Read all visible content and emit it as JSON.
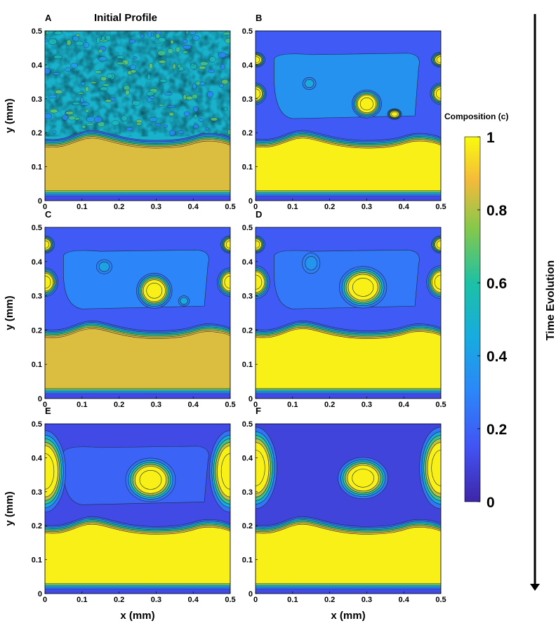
{
  "chart_data": {
    "type": "contour",
    "panel_title": "Initial Profile",
    "xlabel": "x (mm)",
    "ylabel": "y (mm)",
    "x_ticks": [
      "0",
      "0.1",
      "0.2",
      "0.3",
      "0.4",
      "0.5"
    ],
    "y_ticks": [
      "0",
      "0.1",
      "0.2",
      "0.3",
      "0.4",
      "0.5"
    ],
    "xlim": [
      0,
      0.5
    ],
    "ylim": [
      0,
      0.5
    ],
    "colorbar": {
      "label": "Composition (c)",
      "ticks": [
        "0",
        "0.2",
        "0.4",
        "0.6",
        "0.8",
        "1"
      ],
      "range": [
        0,
        1
      ],
      "colormap": "parula"
    },
    "time_arrow_label": "Time Evolution",
    "panels": [
      {
        "label": "A",
        "interface_y": 0.19,
        "matrix_c": 0.5,
        "noisy_top": true,
        "bottom_c": 0.85,
        "blobs": []
      },
      {
        "label": "B",
        "interface_y": 0.19,
        "matrix_c": 0.17,
        "inner_region": {
          "c": 0.35
        },
        "bottom_c": 0.98,
        "blobs": [
          {
            "x": 0.0,
            "y": 0.415,
            "rx": 0.016,
            "ry": 0.014
          },
          {
            "x": 0.0,
            "y": 0.315,
            "rx": 0.018,
            "ry": 0.02
          },
          {
            "x": 0.5,
            "y": 0.415,
            "rx": 0.016,
            "ry": 0.014
          },
          {
            "x": 0.5,
            "y": 0.315,
            "rx": 0.018,
            "ry": 0.02
          },
          {
            "x": 0.3,
            "y": 0.285,
            "rx": 0.025,
            "ry": 0.026
          },
          {
            "x": 0.375,
            "y": 0.255,
            "rx": 0.012,
            "ry": 0.01
          },
          {
            "x": 0.145,
            "y": 0.345,
            "rx": 0.012,
            "ry": 0.012,
            "c": 0.45
          }
        ]
      },
      {
        "label": "C",
        "interface_y": 0.21,
        "matrix_c": 0.17,
        "inner_region": {
          "c": 0.3
        },
        "bottom_c": 0.85,
        "blobs": [
          {
            "x": 0.0,
            "y": 0.45,
            "rx": 0.016,
            "ry": 0.016
          },
          {
            "x": 0.0,
            "y": 0.34,
            "rx": 0.022,
            "ry": 0.026
          },
          {
            "x": 0.5,
            "y": 0.45,
            "rx": 0.016,
            "ry": 0.016
          },
          {
            "x": 0.5,
            "y": 0.34,
            "rx": 0.022,
            "ry": 0.026
          },
          {
            "x": 0.295,
            "y": 0.315,
            "rx": 0.03,
            "ry": 0.032
          },
          {
            "x": 0.375,
            "y": 0.285,
            "rx": 0.01,
            "ry": 0.01,
            "c": 0.45
          },
          {
            "x": 0.16,
            "y": 0.385,
            "rx": 0.014,
            "ry": 0.014,
            "c": 0.42
          }
        ]
      },
      {
        "label": "D",
        "interface_y": 0.21,
        "matrix_c": 0.17,
        "inner_region": {
          "c": 0.26
        },
        "bottom_c": 0.98,
        "blobs": [
          {
            "x": 0.0,
            "y": 0.45,
            "rx": 0.016,
            "ry": 0.016
          },
          {
            "x": 0.0,
            "y": 0.34,
            "rx": 0.024,
            "ry": 0.03
          },
          {
            "x": 0.5,
            "y": 0.45,
            "rx": 0.016,
            "ry": 0.016
          },
          {
            "x": 0.5,
            "y": 0.34,
            "rx": 0.024,
            "ry": 0.03
          },
          {
            "x": 0.29,
            "y": 0.325,
            "rx": 0.04,
            "ry": 0.038
          },
          {
            "x": 0.15,
            "y": 0.395,
            "rx": 0.016,
            "ry": 0.02,
            "c": 0.36
          }
        ]
      },
      {
        "label": "E",
        "interface_y": 0.21,
        "matrix_c": 0.12,
        "inner_region": {
          "c": 0.2
        },
        "bottom_c": 0.98,
        "blobs": [
          {
            "x": 0.0,
            "y": 0.36,
            "rx": 0.035,
            "ry": 0.075
          },
          {
            "x": 0.5,
            "y": 0.36,
            "rx": 0.035,
            "ry": 0.075
          },
          {
            "x": 0.285,
            "y": 0.335,
            "rx": 0.042,
            "ry": 0.04
          }
        ]
      },
      {
        "label": "F",
        "interface_y": 0.21,
        "matrix_c": 0.1,
        "bottom_c": 0.98,
        "blobs": [
          {
            "x": 0.0,
            "y": 0.37,
            "rx": 0.036,
            "ry": 0.075
          },
          {
            "x": 0.5,
            "y": 0.37,
            "rx": 0.036,
            "ry": 0.075
          },
          {
            "x": 0.29,
            "y": 0.34,
            "rx": 0.042,
            "ry": 0.038
          }
        ]
      }
    ]
  }
}
